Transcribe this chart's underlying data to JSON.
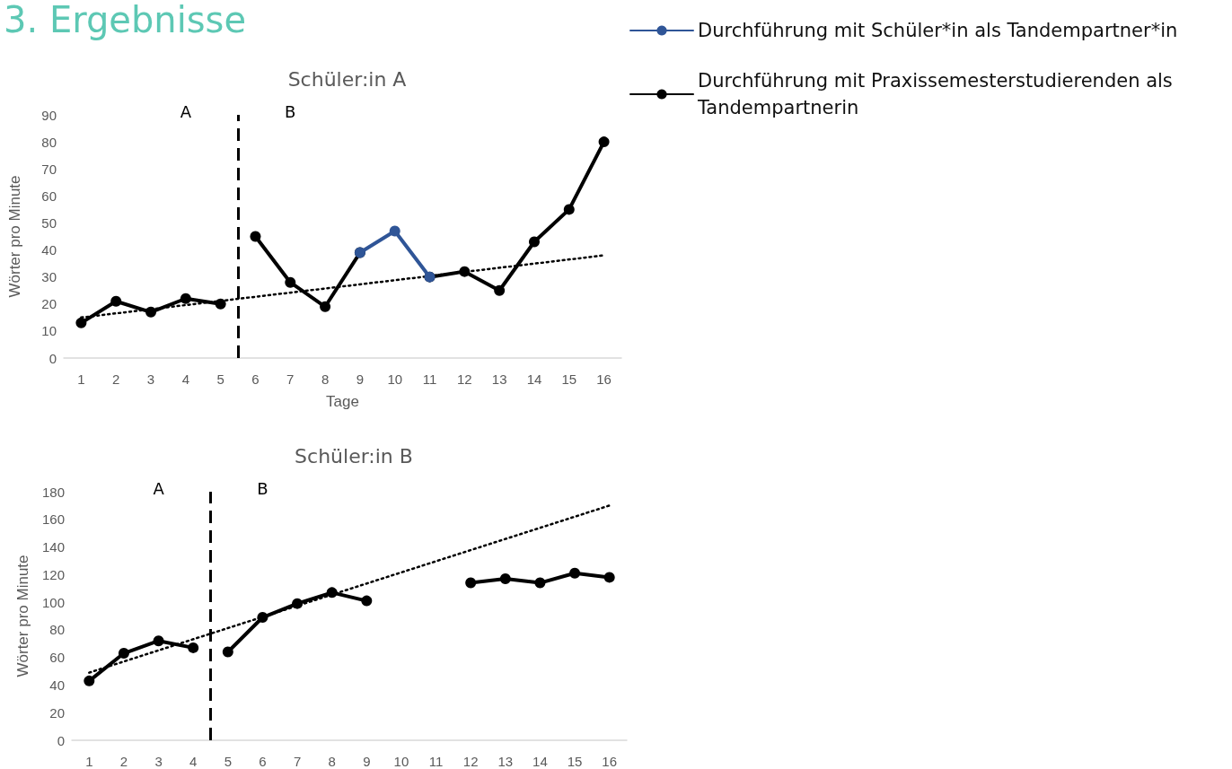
{
  "chart_data": [
    {
      "type": "line",
      "title": "Schüler:in A",
      "xlabel": "Tage",
      "ylabel": "Wörter pro Minute",
      "xlim": [
        0.5,
        16.5
      ],
      "xticks": [
        1,
        2,
        3,
        4,
        5,
        6,
        7,
        8,
        9,
        10,
        11,
        12,
        13,
        14,
        15,
        16
      ],
      "ylim": [
        0,
        90
      ],
      "yticks": [
        0,
        10,
        20,
        30,
        40,
        50,
        60,
        70,
        80,
        90
      ],
      "grid": false,
      "legend": "top right",
      "marker": "circle",
      "line_style": "solid",
      "series": [
        {
          "name": "Durchführung mit Schüler*in als Tandempartner*in",
          "color": "#2f5597",
          "x": [
            9,
            10,
            11
          ],
          "values": [
            39,
            47,
            30
          ]
        },
        {
          "name": "Durchführung mit Praxissemesterstudierenden als Tandempartnerin",
          "color": "#000000",
          "x": [
            1,
            2,
            3,
            4,
            5
          ],
          "values": [
            13,
            21,
            17,
            22,
            20
          ]
        },
        {
          "color": "#000000",
          "x": [
            6,
            7,
            8,
            9,
            10,
            11,
            12,
            13,
            14,
            15,
            16
          ],
          "values": [
            45,
            28,
            19,
            39,
            null,
            30,
            32,
            25,
            43,
            55,
            80
          ]
        },
        {
          "type": "line",
          "color": "#000000",
          "marker": "none",
          "line_style": "dotted",
          "x": [
            1,
            16
          ],
          "values": [
            15,
            38
          ]
        }
      ],
      "ref_lines": [
        {
          "axis": "x",
          "value": 5.5,
          "color": "#000000",
          "line_style": "dashed"
        }
      ],
      "annotations": [
        "3. Ergebnisse",
        "A",
        "B"
      ]
    },
    {
      "type": "line",
      "title": "Schüler:in B",
      "ylabel": "Wörter pro Minute",
      "xlim": [
        0.5,
        16.5
      ],
      "xticks": [
        1,
        2,
        3,
        4,
        5,
        6,
        7,
        8,
        9,
        10,
        11,
        12,
        13,
        14,
        15,
        16
      ],
      "ylim": [
        0,
        180
      ],
      "yticks": [
        0,
        20,
        40,
        60,
        80,
        100,
        120,
        140,
        160,
        180
      ],
      "grid": false,
      "marker": "circle",
      "line_style": "solid",
      "series": [
        {
          "color": "#000000",
          "x": [
            1,
            2,
            3,
            4
          ],
          "values": [
            43,
            63,
            72,
            67
          ]
        },
        {
          "color": "#000000",
          "x": [
            5,
            6,
            7,
            8,
            9,
            10,
            11,
            12,
            13,
            14,
            15,
            16
          ],
          "values": [
            64,
            89,
            99,
            107,
            101,
            null,
            null,
            114,
            117,
            114,
            121,
            118
          ]
        },
        {
          "type": "line",
          "color": "#000000",
          "marker": "none",
          "line_style": "dotted",
          "x": [
            1,
            16
          ],
          "values": [
            49,
            170
          ]
        }
      ],
      "ref_lines": [
        {
          "axis": "x",
          "value": 4.5,
          "color": "#000000",
          "line_style": "dashed"
        }
      ],
      "annotations": [
        "A",
        "B"
      ]
    }
  ]
}
